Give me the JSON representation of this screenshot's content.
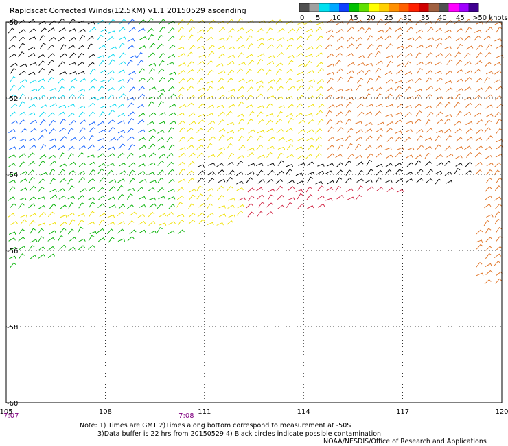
{
  "header": {
    "title": "Rapidscat Corrected Winds(12.5KM) v1.1 20150529 ascending"
  },
  "legend": {
    "labels": [
      "0",
      "5",
      "10",
      "15",
      "20",
      "25",
      "30",
      "35",
      "40",
      "45",
      ">50 knots"
    ],
    "colors": [
      "#505050",
      "#a0a0a0",
      "#00e0f0",
      "#00a8ff",
      "#1040ff",
      "#00c000",
      "#60e000",
      "#ffff00",
      "#ffd000",
      "#ff9000",
      "#ff6000",
      "#ff2000",
      "#d00000",
      "#a06040",
      "#505050",
      "#ff00ff",
      "#a000ff",
      "#400090"
    ]
  },
  "footer": {
    "note_line1": "Note: 1) Times are GMT 2)Times along bottom correspond to measurement at -50S",
    "note_line2": "3)Data buffer is 22 hrs from 20150529 4) Black circles indicate possible contamination",
    "credit": "NOAA/NESDIS/Office of Research and Applications"
  },
  "chart_data": {
    "type": "wind_barb_map",
    "x_ticks": [
      "105",
      "108",
      "111",
      "114",
      "117",
      "120"
    ],
    "y_ticks": [
      "-50",
      "-52",
      "-54",
      "-56",
      "-58",
      "-60"
    ],
    "xlim": [
      105,
      120
    ],
    "ylim": [
      -60,
      -50
    ],
    "grid": true,
    "time_labels": [
      {
        "text": "7:07",
        "x": 105
      },
      {
        "text": "7:08",
        "x": 110.3
      }
    ],
    "speed_bins_knots": [
      0,
      5,
      10,
      15,
      20,
      25,
      30,
      35,
      40,
      45,
      50
    ]
  }
}
